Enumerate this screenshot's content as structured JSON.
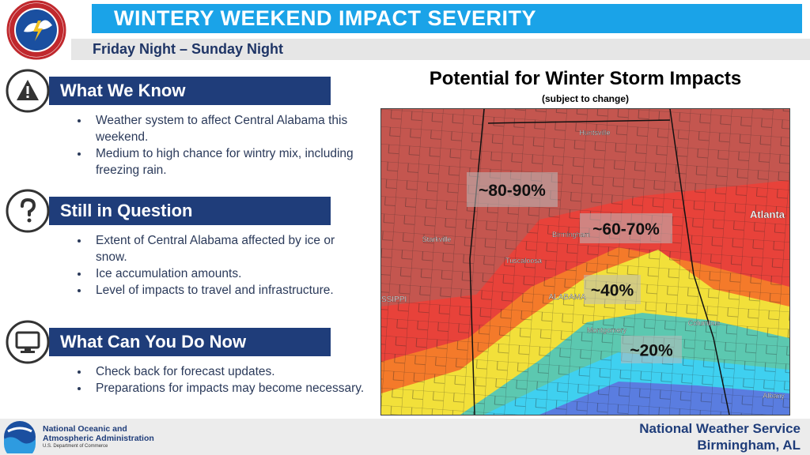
{
  "header": {
    "title": "WINTERY WEEKEND IMPACT SEVERITY",
    "subtitle": "Friday Night – Sunday Night"
  },
  "sections": [
    {
      "title": "What We Know",
      "bullets": [
        "Weather system to affect Central Alabama this weekend.",
        "Medium to high chance for wintry mix, including freezing rain."
      ]
    },
    {
      "title": "Still in Question",
      "bullets": [
        "Extent of Central Alabama affected by ice or snow.",
        "Ice accumulation amounts.",
        "Level of impacts to travel and infrastructure."
      ]
    },
    {
      "title": "What Can You Do Now",
      "bullets": [
        "Check back for forecast updates.",
        "Preparations for impacts may become necessary."
      ]
    }
  ],
  "map": {
    "title": "Potential for Winter Storm Impacts",
    "subtitle": "(subject to change)",
    "zones": [
      "~80-90%",
      "~60-70%",
      "~40%",
      "~20%"
    ],
    "places": [
      "Huntsville",
      "Starkville",
      "Birmingham",
      "Tuscaloosa",
      "Atlanta",
      "ALABAMA",
      "SSIPPI",
      "Montgomery",
      "Columbus",
      "Albany"
    ]
  },
  "footer": {
    "agency": "National Oceanic and Atmospheric Administration",
    "department": "U.S. Department of Commerce",
    "office": "National Weather Service",
    "location": "Birmingham, AL"
  }
}
